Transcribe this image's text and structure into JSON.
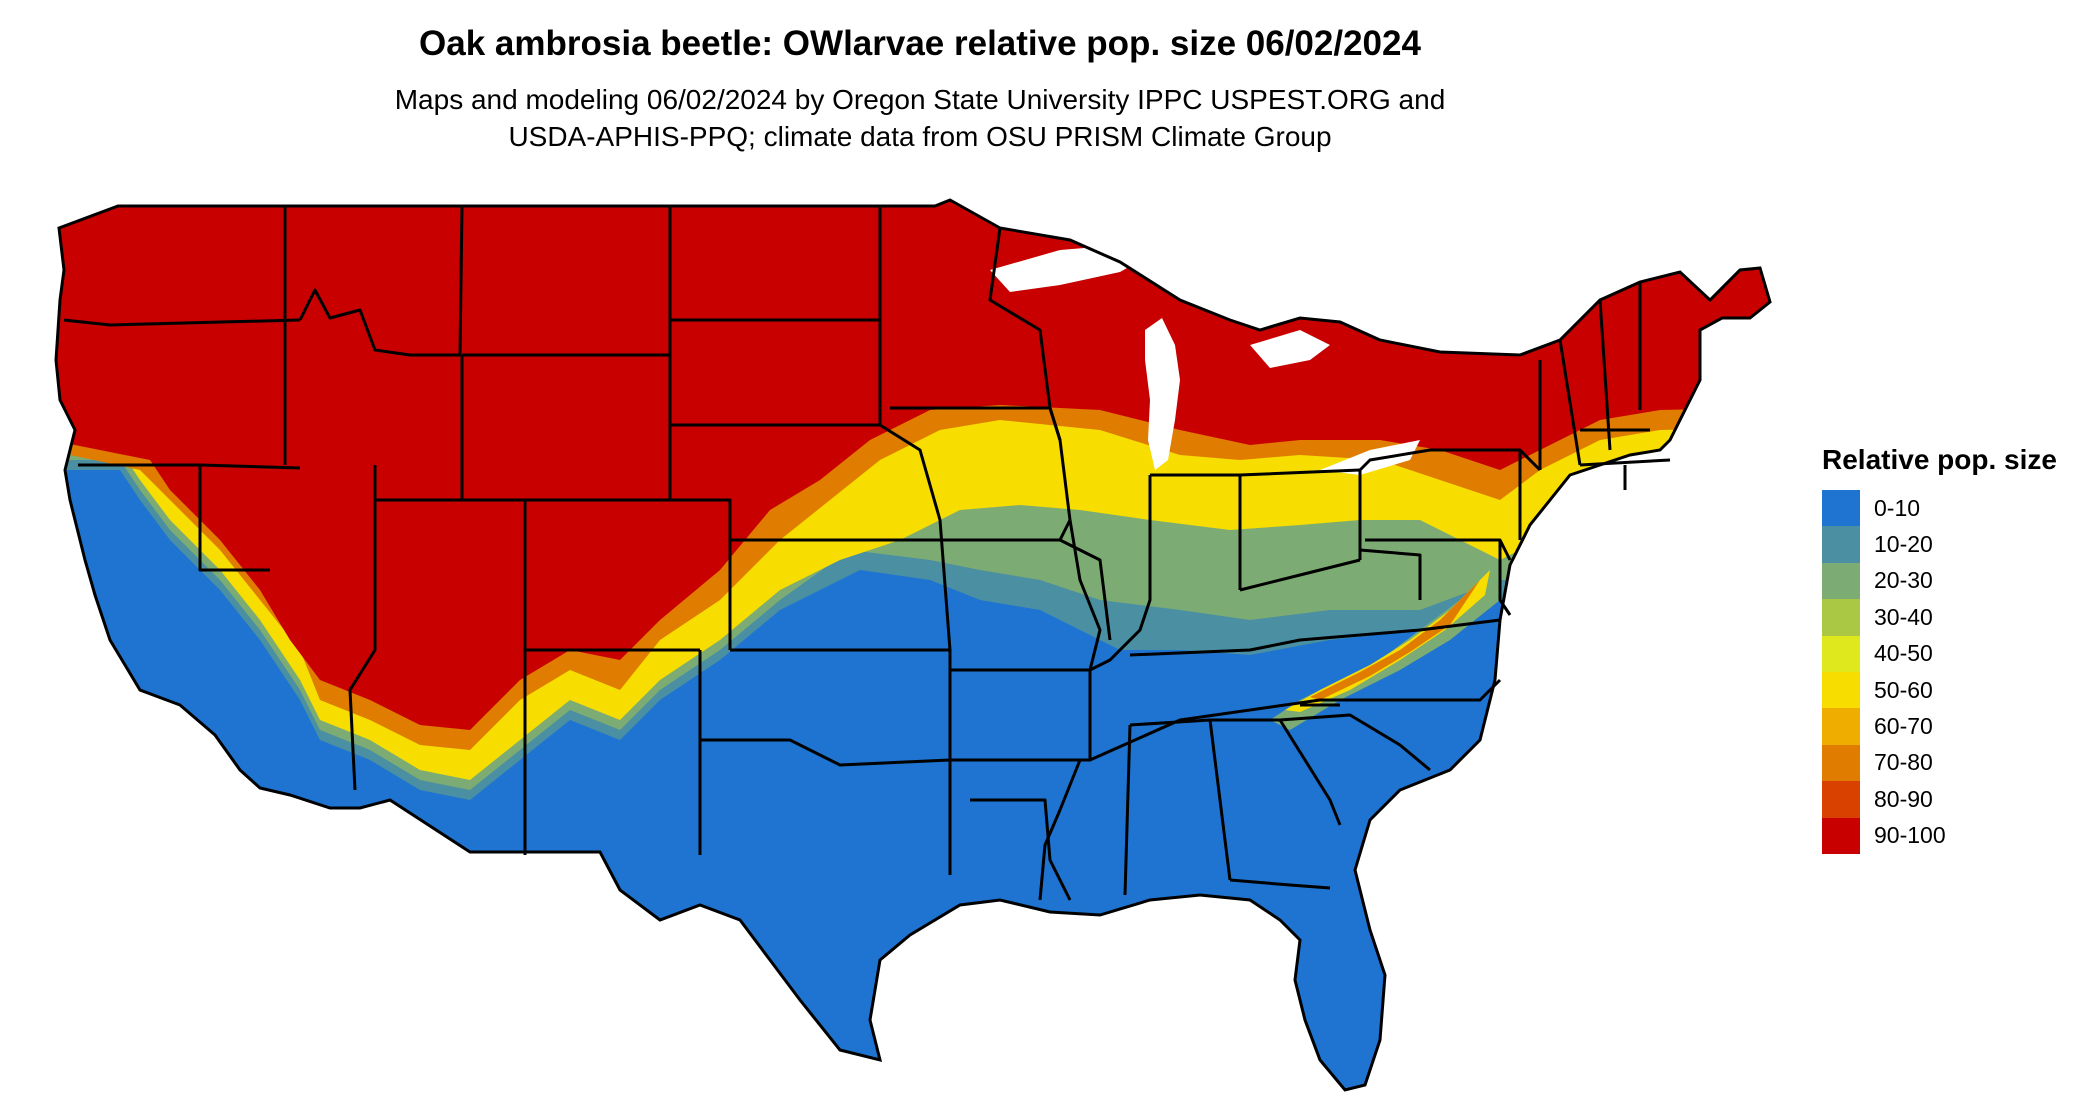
{
  "title": "Oak ambrosia beetle: OWlarvae relative pop. size 06/02/2024",
  "subtitle_line1": "Maps and modeling 06/02/2024 by Oregon State University IPPC USPEST.ORG and",
  "subtitle_line2": "USDA-APHIS-PPQ; climate data from OSU PRISM Climate Group",
  "legend": {
    "title": "Relative pop. size",
    "items": [
      {
        "label": "0-10",
        "color": "#1e74d0"
      },
      {
        "label": "10-20",
        "color": "#4a8fa2"
      },
      {
        "label": "20-30",
        "color": "#7cab73"
      },
      {
        "label": "30-40",
        "color": "#aac843"
      },
      {
        "label": "40-50",
        "color": "#dfe81c"
      },
      {
        "label": "50-60",
        "color": "#f7de00"
      },
      {
        "label": "60-70",
        "color": "#efad00"
      },
      {
        "label": "70-80",
        "color": "#e07c00"
      },
      {
        "label": "80-90",
        "color": "#d84100"
      },
      {
        "label": "90-100",
        "color": "#c80000"
      }
    ]
  }
}
